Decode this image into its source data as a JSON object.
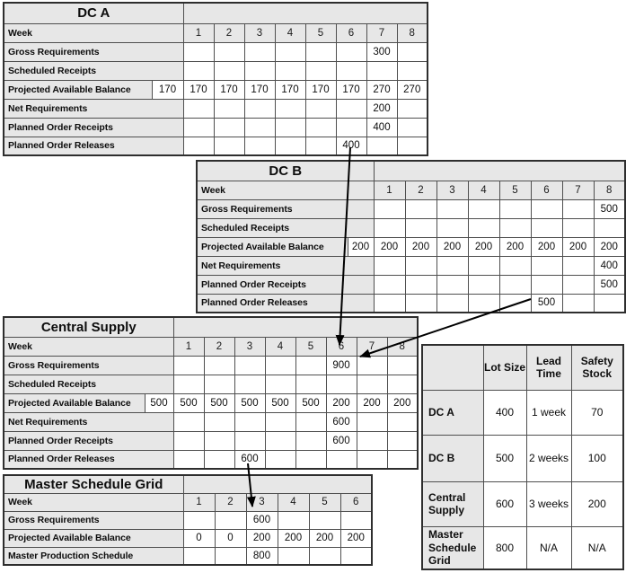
{
  "mrp_tables": [
    {
      "id": "dc-a",
      "title": "DC A",
      "week_label": "Week",
      "weeks": [
        "1",
        "2",
        "3",
        "4",
        "5",
        "6",
        "7",
        "8"
      ],
      "rows": [
        {
          "label": "Gross Requirements",
          "initial": null,
          "values": [
            "",
            "",
            "",
            "",
            "",
            "",
            "300",
            ""
          ]
        },
        {
          "label": "Scheduled Receipts",
          "initial": null,
          "values": [
            "",
            "",
            "",
            "",
            "",
            "",
            "",
            ""
          ]
        },
        {
          "label": "Projected Available Balance",
          "initial": "170",
          "values": [
            "170",
            "170",
            "170",
            "170",
            "170",
            "170",
            "270",
            "270"
          ]
        },
        {
          "label": "Net Requirements",
          "initial": null,
          "values": [
            "",
            "",
            "",
            "",
            "",
            "",
            "200",
            ""
          ]
        },
        {
          "label": "Planned Order Receipts",
          "initial": null,
          "values": [
            "",
            "",
            "",
            "",
            "",
            "",
            "400",
            ""
          ]
        },
        {
          "label": "Planned Order Releases",
          "initial": null,
          "values": [
            "",
            "",
            "",
            "",
            "",
            "400",
            "",
            ""
          ]
        }
      ]
    },
    {
      "id": "dc-b",
      "title": "DC B",
      "week_label": "Week",
      "weeks": [
        "1",
        "2",
        "3",
        "4",
        "5",
        "6",
        "7",
        "8"
      ],
      "rows": [
        {
          "label": "Gross Requirements",
          "initial": null,
          "values": [
            "",
            "",
            "",
            "",
            "",
            "",
            "",
            "500"
          ]
        },
        {
          "label": "Scheduled Receipts",
          "initial": null,
          "values": [
            "",
            "",
            "",
            "",
            "",
            "",
            "",
            ""
          ]
        },
        {
          "label": "Projected Available Balance",
          "initial": "200",
          "values": [
            "200",
            "200",
            "200",
            "200",
            "200",
            "200",
            "200",
            "200"
          ]
        },
        {
          "label": "Net Requirements",
          "initial": null,
          "values": [
            "",
            "",
            "",
            "",
            "",
            "",
            "",
            "400"
          ]
        },
        {
          "label": "Planned Order Receipts",
          "initial": null,
          "values": [
            "",
            "",
            "",
            "",
            "",
            "",
            "",
            "500"
          ]
        },
        {
          "label": "Planned Order Releases",
          "initial": null,
          "values": [
            "",
            "",
            "",
            "",
            "",
            "500",
            "",
            ""
          ]
        }
      ]
    },
    {
      "id": "central-supply",
      "title": "Central Supply",
      "week_label": "Week",
      "weeks": [
        "1",
        "2",
        "3",
        "4",
        "5",
        "6",
        "7",
        "8"
      ],
      "rows": [
        {
          "label": "Gross Requirements",
          "initial": null,
          "values": [
            "",
            "",
            "",
            "",
            "",
            "900",
            "",
            ""
          ]
        },
        {
          "label": "Scheduled Receipts",
          "initial": null,
          "values": [
            "",
            "",
            "",
            "",
            "",
            "",
            "",
            ""
          ]
        },
        {
          "label": "Projected Available Balance",
          "initial": "500",
          "values": [
            "500",
            "500",
            "500",
            "500",
            "500",
            "200",
            "200",
            "200"
          ]
        },
        {
          "label": "Net Requirements",
          "initial": null,
          "values": [
            "",
            "",
            "",
            "",
            "",
            "600",
            "",
            ""
          ]
        },
        {
          "label": "Planned Order Receipts",
          "initial": null,
          "values": [
            "",
            "",
            "",
            "",
            "",
            "600",
            "",
            ""
          ]
        },
        {
          "label": "Planned Order Releases",
          "initial": null,
          "values": [
            "",
            "",
            "600",
            "",
            "",
            "",
            "",
            ""
          ]
        }
      ]
    },
    {
      "id": "master-schedule-grid",
      "title": "Master Schedule Grid",
      "week_label": "Week",
      "weeks": [
        "1",
        "2",
        "3",
        "4",
        "5",
        "6"
      ],
      "rows": [
        {
          "label": "Gross Requirements",
          "initial": null,
          "values": [
            "",
            "",
            "600",
            "",
            "",
            ""
          ]
        },
        {
          "label": "Projected Available Balance",
          "initial": null,
          "values": [
            "0",
            "0",
            "200",
            "200",
            "200",
            "200"
          ]
        },
        {
          "label": "Master Production Schedule",
          "initial": null,
          "values": [
            "",
            "",
            "800",
            "",
            "",
            ""
          ]
        }
      ]
    }
  ],
  "params_table": {
    "corner": "",
    "col_headers": [
      "Lot Size",
      "Lead Time",
      "Safety Stock"
    ],
    "rows": [
      {
        "label": "DC A",
        "lot_size": "400",
        "lead_time": "1 week",
        "safety_stock": "70"
      },
      {
        "label": "DC B",
        "lot_size": "500",
        "lead_time": "2 weeks",
        "safety_stock": "100"
      },
      {
        "label": "Central Supply",
        "lot_size": "600",
        "lead_time": "3 weeks",
        "safety_stock": "200"
      },
      {
        "label": "Master Schedule Grid",
        "lot_size": "800",
        "lead_time": "N/A",
        "safety_stock": "N/A"
      }
    ]
  },
  "arrows": [
    {
      "from": "dc-a planned-order-releases week-6 (400)",
      "to": "central-supply gross-requirements week-6 (900)"
    },
    {
      "from": "dc-b planned-order-releases week-6 (500)",
      "to": "central-supply gross-requirements week-6 (900)"
    },
    {
      "from": "central-supply planned-order-releases week-3 (600)",
      "to": "master-schedule-grid gross-requirements week-3 (600)"
    }
  ],
  "colors": {
    "cell_gray": "#e7e7e7",
    "border": "#4f4f4f",
    "arrow": "#000000"
  }
}
